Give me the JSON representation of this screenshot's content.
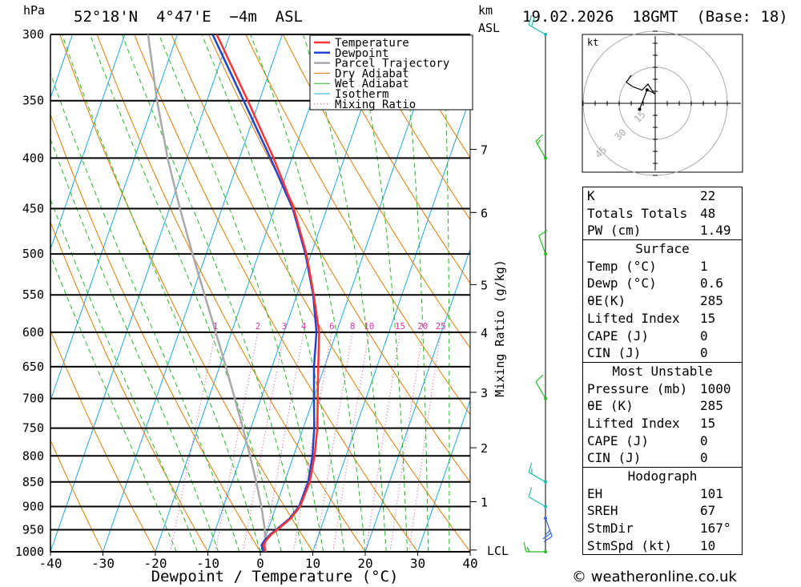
{
  "header": {
    "pressure_unit": "hPa",
    "location": "52°18'N  4°47'E  −4m  ASL",
    "height_unit_km": "km",
    "height_unit_asl": "ASL",
    "datetime": "19.02.2026  18GMT  (Base: 18)"
  },
  "footer": {
    "copyright": "© weatheronline.co.uk"
  },
  "chart_data": {
    "type": "line",
    "title": "",
    "xlabel": "Dewpoint / Temperature (°C)",
    "ylabel": "hPa",
    "y_scale": "log",
    "xlim": [
      -40,
      40
    ],
    "ylim": [
      1000,
      300
    ],
    "x_ticks": [
      -40,
      -30,
      -20,
      -10,
      0,
      10,
      20,
      30,
      40
    ],
    "pressure_levels": [
      300,
      350,
      400,
      450,
      500,
      550,
      600,
      650,
      700,
      750,
      800,
      850,
      900,
      950,
      1000
    ],
    "height_ticks_km": [
      {
        "label": "7",
        "p": 392
      },
      {
        "label": "6",
        "p": 454
      },
      {
        "label": "5",
        "p": 537
      },
      {
        "label": "4",
        "p": 600
      },
      {
        "label": "3",
        "p": 690
      },
      {
        "label": "2",
        "p": 785
      },
      {
        "label": "1",
        "p": 890
      },
      {
        "label": "LCL",
        "p": 996
      }
    ],
    "mixing_ratio_label": "Mixing Ratio (g/kg)",
    "mixing_ratio_values": [
      1,
      2,
      3,
      4,
      6,
      8,
      10,
      15,
      20,
      25
    ],
    "legend": [
      "Temperature",
      "Dewpoint",
      "Parcel Trajectory",
      "Dry Adiabat",
      "Wet Adiabat",
      "Isotherm",
      "Mixing Ratio"
    ],
    "legend_position": "top-right",
    "colors": {
      "temperature": "#ff3333",
      "dewpoint": "#2244cc",
      "parcel": "#a9a9a9",
      "dry_adiabat": "#e07b00",
      "wet_adiabat": "#22bb22",
      "isotherm": "#1ea7e8",
      "mixing_ratio": "#dd33aa"
    },
    "series": [
      {
        "name": "Temperature",
        "points": [
          [
            1000,
            1.0
          ],
          [
            985,
            0.2
          ],
          [
            975,
            0.3
          ],
          [
            960,
            1.0
          ],
          [
            950,
            1.8
          ],
          [
            925,
            3.6
          ],
          [
            900,
            4.6
          ],
          [
            850,
            4.8
          ],
          [
            800,
            4.0
          ],
          [
            750,
            2.7
          ],
          [
            700,
            0.8
          ],
          [
            650,
            -1.2
          ],
          [
            600,
            -3.3
          ],
          [
            550,
            -6.8
          ],
          [
            500,
            -10.9
          ],
          [
            450,
            -16.3
          ],
          [
            400,
            -23.5
          ],
          [
            350,
            -32.2
          ],
          [
            300,
            -42.5
          ]
        ]
      },
      {
        "name": "Dewpoint",
        "points": [
          [
            1000,
            0.6
          ],
          [
            985,
            -0.2
          ],
          [
            975,
            0.0
          ],
          [
            960,
            0.8
          ],
          [
            950,
            1.6
          ],
          [
            925,
            3.4
          ],
          [
            900,
            4.4
          ],
          [
            850,
            4.5
          ],
          [
            800,
            3.6
          ],
          [
            750,
            2.1
          ],
          [
            700,
            0.1
          ],
          [
            650,
            -2.0
          ],
          [
            600,
            -3.8
          ],
          [
            550,
            -6.9
          ],
          [
            500,
            -11.1
          ],
          [
            450,
            -16.5
          ],
          [
            400,
            -24.1
          ],
          [
            350,
            -33.0
          ],
          [
            300,
            -43.3
          ]
        ]
      },
      {
        "name": "Parcel Trajectory",
        "points": [
          [
            1000,
            1.0
          ],
          [
            950,
            -0.6
          ],
          [
            900,
            -2.8
          ],
          [
            850,
            -5.4
          ],
          [
            800,
            -8.3
          ],
          [
            750,
            -11.5
          ],
          [
            700,
            -15.0
          ],
          [
            650,
            -18.8
          ],
          [
            600,
            -23.0
          ],
          [
            550,
            -27.6
          ],
          [
            500,
            -32.6
          ],
          [
            450,
            -38.0
          ],
          [
            400,
            -43.7
          ],
          [
            350,
            -49.5
          ],
          [
            300,
            -55.6
          ]
        ]
      }
    ],
    "hodograph": {
      "unit": "kt",
      "ring_labels": [
        "15",
        "30",
        "45"
      ],
      "points_uv": [
        [
          -6.5,
          -2.5
        ],
        [
          -3.4,
          5.6
        ],
        [
          0.0,
          4.0
        ],
        [
          -0.4,
          4.0
        ],
        [
          -1.5,
          5.6
        ],
        [
          -3.0,
          8.0
        ],
        [
          -5.5,
          5.5
        ],
        [
          -9.5,
          7.0
        ],
        [
          -12.0,
          8.8
        ],
        [
          -10.0,
          11.7
        ]
      ]
    }
  },
  "indices": [
    {
      "label": "K",
      "value": "22"
    },
    {
      "label": "Totals Totals",
      "value": "48"
    },
    {
      "label": "PW (cm)",
      "value": "1.49"
    }
  ],
  "surface": {
    "title": "Surface",
    "rows": [
      {
        "label": "Temp (°C)",
        "value": "1"
      },
      {
        "label": "Dewp (°C)",
        "value": "0.6"
      },
      {
        "label": "θE(K)",
        "value": "285"
      },
      {
        "label": "Lifted Index",
        "value": "15"
      },
      {
        "label": "CAPE (J)",
        "value": "0"
      },
      {
        "label": "CIN (J)",
        "value": "0"
      }
    ]
  },
  "most_unstable": {
    "title": "Most Unstable",
    "rows": [
      {
        "label": "Pressure (mb)",
        "value": "1000"
      },
      {
        "label": "θE (K)",
        "value": "285"
      },
      {
        "label": "Lifted Index",
        "value": "15"
      },
      {
        "label": "CAPE (J)",
        "value": "0"
      },
      {
        "label": "CIN (J)",
        "value": "0"
      }
    ]
  },
  "hodograph_table": {
    "title": "Hodograph",
    "rows": [
      {
        "label": "EH",
        "value": "101"
      },
      {
        "label": "SREH",
        "value": "67"
      },
      {
        "label": "StmDir",
        "value": "167°"
      },
      {
        "label": "StmSpd (kt)",
        "value": "10"
      }
    ]
  },
  "wind_barbs": [
    {
      "p": 300,
      "speed_kt": 20,
      "dir_deg": 300,
      "color": "#22bbaa"
    },
    {
      "p": 400,
      "speed_kt": 15,
      "dir_deg": 330,
      "color": "#22bb22"
    },
    {
      "p": 500,
      "speed_kt": 10,
      "dir_deg": 340,
      "color": "#22bb22"
    },
    {
      "p": 700,
      "speed_kt": 10,
      "dir_deg": 330,
      "color": "#22bb22"
    },
    {
      "p": 850,
      "speed_kt": 15,
      "dir_deg": 300,
      "color": "#22bbaa"
    },
    {
      "p": 900,
      "speed_kt": 10,
      "dir_deg": 300,
      "color": "#22bbaa"
    },
    {
      "p": 925,
      "speed_kt": 25,
      "dir_deg": 160,
      "color": "#3366ee"
    },
    {
      "p": 1000,
      "speed_kt": 15,
      "dir_deg": 270,
      "color": "#22bb22"
    }
  ]
}
